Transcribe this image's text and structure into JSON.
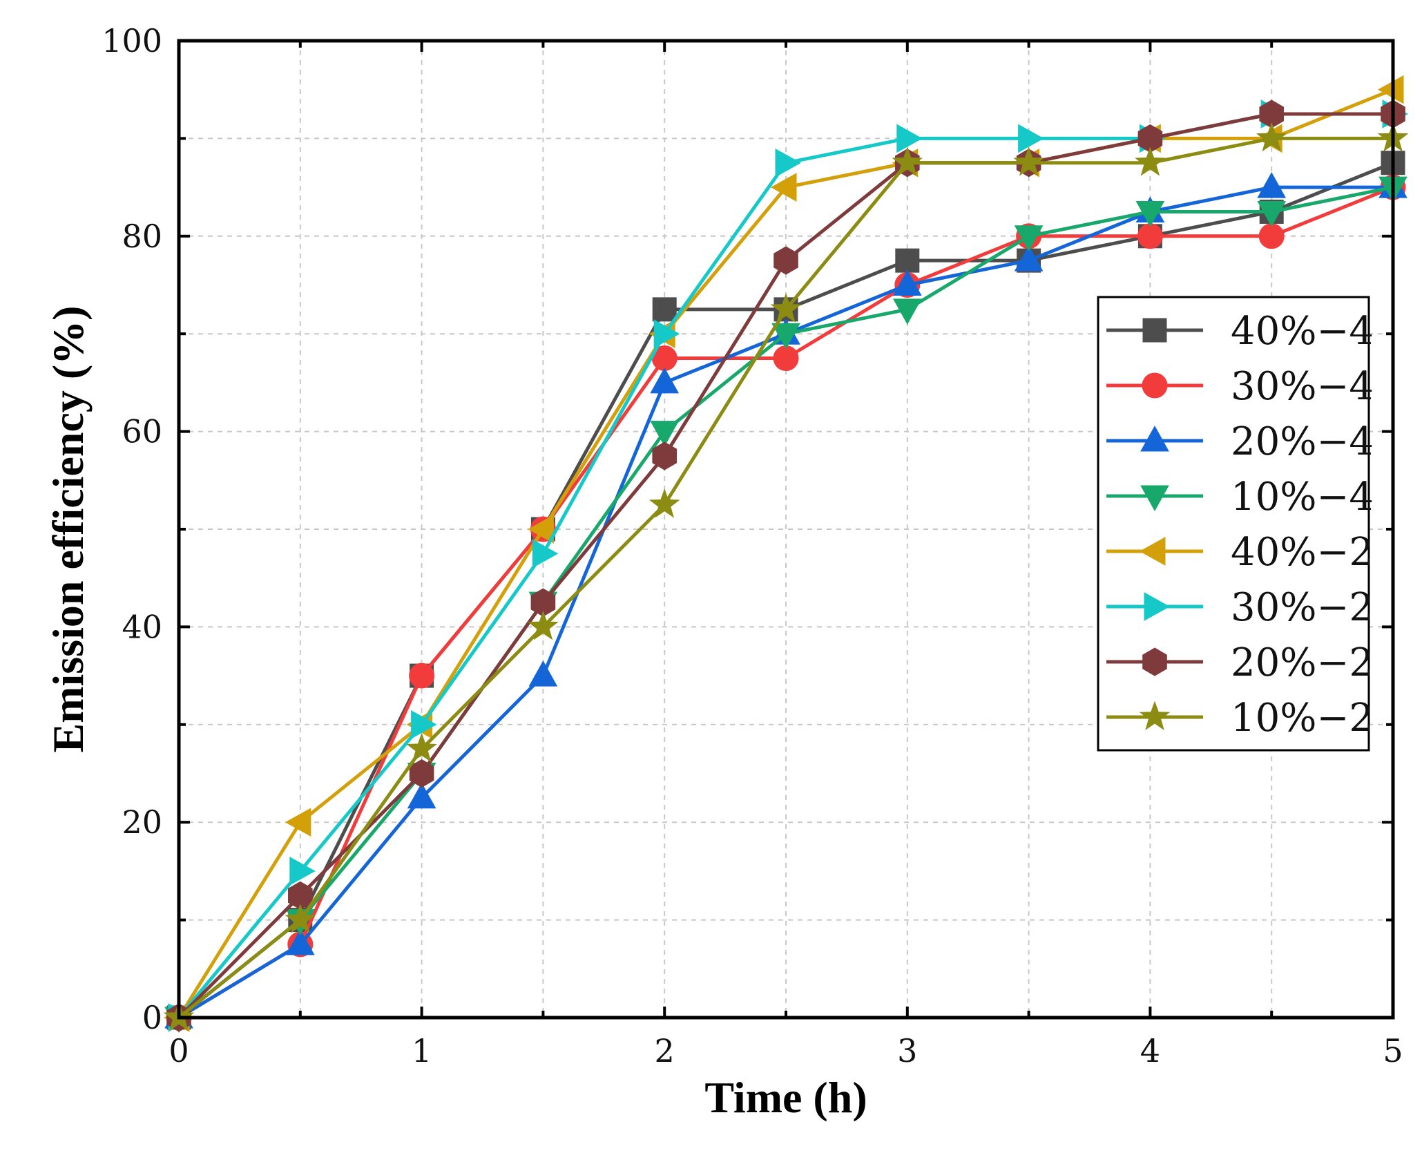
{
  "chart_data": {
    "type": "line",
    "title": "",
    "xlabel": "Time  (h)",
    "ylabel": "Emission efficiency (%)",
    "xlim": [
      0,
      5
    ],
    "ylim": [
      0,
      100
    ],
    "x_ticks": [
      0,
      1,
      2,
      3,
      4,
      5
    ],
    "x_tick_labels": [
      "0",
      "1",
      "2",
      "3",
      "4",
      "5"
    ],
    "y_ticks": [
      0,
      20,
      40,
      60,
      80,
      100
    ],
    "y_tick_labels": [
      "0",
      "20",
      "40",
      "60",
      "80",
      "100"
    ],
    "grid": true,
    "legend_position": "right",
    "x": [
      0,
      0.5,
      1,
      1.5,
      2,
      2.5,
      3,
      3.5,
      4,
      4.5,
      5
    ],
    "series": [
      {
        "name": "40%−4",
        "color": "#4d4d4d",
        "marker": "square",
        "values": [
          0,
          10,
          35,
          50,
          72.5,
          72.5,
          77.5,
          77.5,
          80,
          82.5,
          87.5
        ]
      },
      {
        "name": "30%−4",
        "color": "#f23c3c",
        "marker": "circle",
        "values": [
          0,
          7.5,
          35,
          50,
          67.5,
          67.5,
          75,
          80,
          80,
          80,
          85
        ]
      },
      {
        "name": "20%−4",
        "color": "#1466d8",
        "marker": "triangle-up",
        "values": [
          0,
          7.5,
          22.5,
          35,
          65,
          70,
          75,
          77.5,
          82.5,
          85,
          85
        ]
      },
      {
        "name": "10%−4",
        "color": "#18a86b",
        "marker": "triangle-down",
        "values": [
          0,
          10,
          25,
          42.5,
          60,
          70,
          72.5,
          80,
          82.5,
          82.5,
          85
        ]
      },
      {
        "name": "40%−2",
        "color": "#d4a00a",
        "marker": "triangle-left",
        "values": [
          0,
          20,
          30,
          50,
          70,
          85,
          87.5,
          87.5,
          90,
          90,
          95
        ]
      },
      {
        "name": "30%−2",
        "color": "#16c9c9",
        "marker": "triangle-right",
        "values": [
          0,
          15,
          30,
          47.5,
          70,
          87.5,
          90,
          90,
          90,
          92.5,
          92.5
        ]
      },
      {
        "name": "20%−2",
        "color": "#7f3b3b",
        "marker": "hexagon",
        "values": [
          0,
          12.5,
          25,
          42.5,
          57.5,
          77.5,
          87.5,
          87.5,
          90,
          92.5,
          92.5
        ]
      },
      {
        "name": "10%−2",
        "color": "#8c8c12",
        "marker": "star",
        "values": [
          0,
          10,
          27.5,
          40,
          52.5,
          72.5,
          87.5,
          87.5,
          87.5,
          90,
          90
        ]
      }
    ]
  }
}
